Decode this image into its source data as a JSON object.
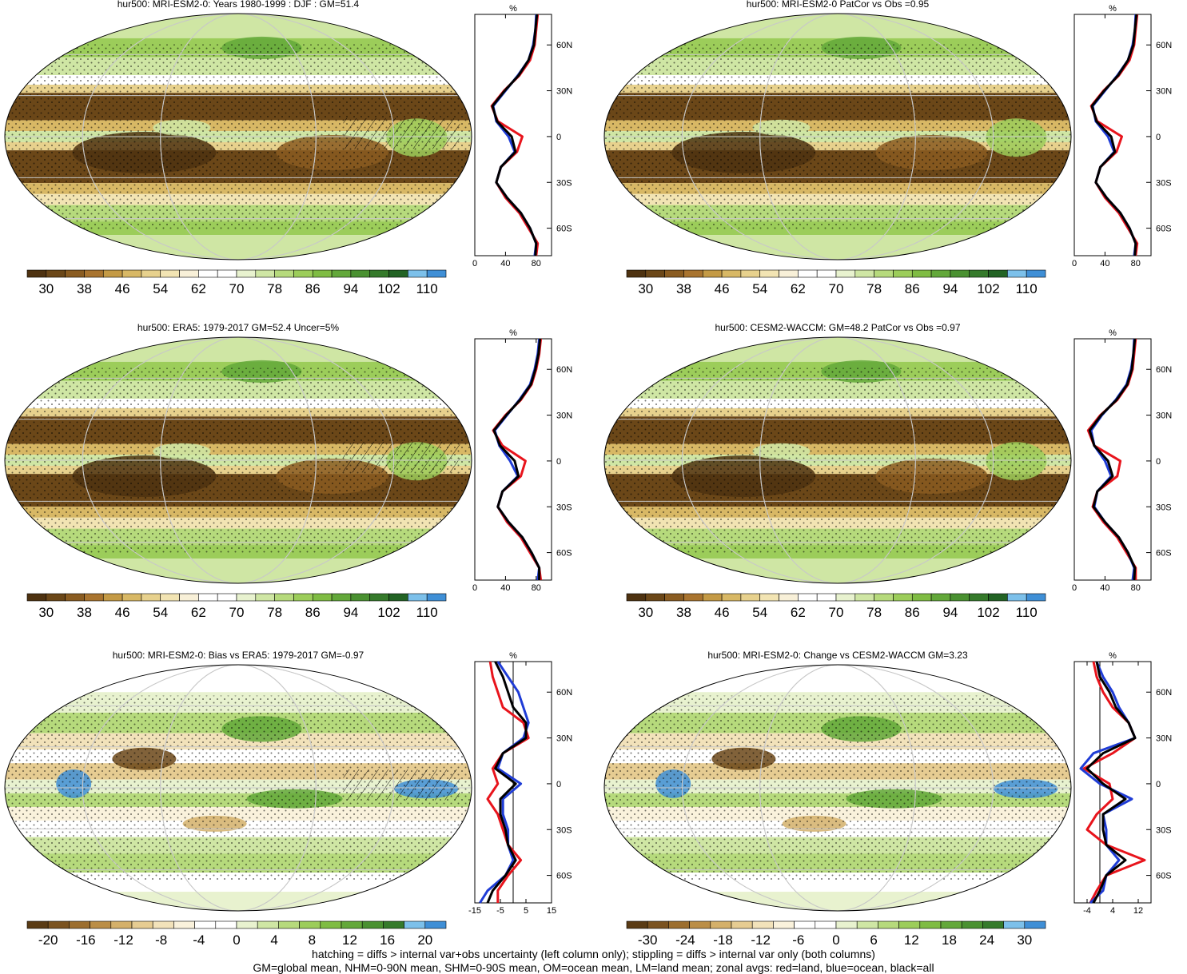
{
  "colors": {
    "line_land": "#e8141c",
    "line_ocean": "#1f3cd6",
    "line_all": "#000000",
    "ocean_fill": "#f4f4f4",
    "grid": "#c8c8c8",
    "abs_palette": [
      "#4e3210",
      "#6b4718",
      "#8a5c21",
      "#a9742f",
      "#c49a45",
      "#d8b865",
      "#e7d18d",
      "#f2e4b3",
      "#f8f0d8",
      "#ffffff",
      "#ffffff",
      "#e8f2cf",
      "#cfe6a4",
      "#b6da7c",
      "#9ccd5a",
      "#7fbc43",
      "#63a83a",
      "#4a9131",
      "#357a2b",
      "#226324",
      "#7cc0ea",
      "#3f8fd6"
    ],
    "diff_palette": [
      "#5a3b14",
      "#7b5320",
      "#9c6e2e",
      "#bb8e46",
      "#d4b06a",
      "#e6cc92",
      "#f2e2ba",
      "#faf2dc",
      "#ffffff",
      "#ffffff",
      "#e8f2cf",
      "#cfe6a4",
      "#b6da7c",
      "#9ccd5a",
      "#7fbc43",
      "#63a83a",
      "#4a9131",
      "#357a2b",
      "#7cc0ea",
      "#3f8fd6"
    ]
  },
  "chart_data": [
    {
      "type": "heatmap",
      "title": "hur500: MRI-ESM2-0: Years 1980-1999 : DJF : GM=51.4",
      "colorbar_labels": [
        "30",
        "38",
        "46",
        "54",
        "62",
        "70",
        "78",
        "86",
        "94",
        "102",
        "110"
      ],
      "zonal_profile": {
        "unit": "%",
        "x_ticks": [
          "0",
          "40",
          "80"
        ],
        "xlim": [
          0,
          100
        ],
        "y_ticks": [
          "60N",
          "30N",
          "0",
          "30S",
          "60S"
        ],
        "lat": [
          80,
          70,
          60,
          50,
          40,
          30,
          20,
          10,
          0,
          -10,
          -20,
          -30,
          -40,
          -50,
          -60,
          -70,
          -78
        ],
        "land": [
          82,
          80,
          78,
          72,
          58,
          38,
          22,
          30,
          62,
          55,
          34,
          28,
          40,
          58,
          70,
          82,
          80
        ],
        "ocean": [
          80,
          79,
          76,
          70,
          56,
          40,
          24,
          28,
          44,
          52,
          34,
          28,
          42,
          60,
          72,
          80,
          78
        ],
        "all": [
          81,
          79,
          77,
          70,
          57,
          39,
          23,
          29,
          48,
          53,
          34,
          28,
          42,
          60,
          72,
          80,
          79
        ]
      }
    },
    {
      "type": "heatmap",
      "title": "hur500: MRI-ESM2-0 PatCor vs Obs =0.95",
      "colorbar_labels": [
        "30",
        "38",
        "46",
        "54",
        "62",
        "70",
        "78",
        "86",
        "94",
        "102",
        "110"
      ],
      "zonal_profile": {
        "unit": "%",
        "x_ticks": [
          "0",
          "40",
          "80"
        ],
        "xlim": [
          0,
          100
        ],
        "y_ticks": [
          "60N",
          "30N",
          "0",
          "30S",
          "60S"
        ],
        "lat": [
          80,
          70,
          60,
          50,
          40,
          30,
          20,
          10,
          0,
          -10,
          -20,
          -30,
          -40,
          -50,
          -60,
          -70,
          -78
        ],
        "land": [
          82,
          80,
          78,
          72,
          58,
          38,
          22,
          30,
          62,
          55,
          34,
          28,
          40,
          58,
          70,
          82,
          80
        ],
        "ocean": [
          80,
          79,
          76,
          70,
          56,
          40,
          24,
          28,
          44,
          52,
          34,
          28,
          42,
          60,
          72,
          80,
          78
        ],
        "all": [
          81,
          79,
          77,
          70,
          57,
          39,
          23,
          29,
          48,
          53,
          34,
          28,
          42,
          60,
          72,
          80,
          79
        ]
      }
    },
    {
      "type": "heatmap",
      "title": "hur500: ERA5: 1979-2017 GM=52.4 Uncer=5%",
      "colorbar_labels": [
        "30",
        "38",
        "46",
        "54",
        "62",
        "70",
        "78",
        "86",
        "94",
        "102",
        "110"
      ],
      "zonal_profile": {
        "unit": "%",
        "x_ticks": [
          "0",
          "40",
          "80"
        ],
        "xlim": [
          0,
          100
        ],
        "y_ticks": [
          "60N",
          "30N",
          "0",
          "30S",
          "60S"
        ],
        "lat": [
          80,
          70,
          60,
          50,
          40,
          30,
          20,
          10,
          0,
          -10,
          -20,
          -30,
          -40,
          -50,
          -60,
          -70,
          -78
        ],
        "land": [
          86,
          84,
          80,
          74,
          60,
          40,
          24,
          36,
          66,
          60,
          36,
          30,
          42,
          60,
          72,
          84,
          86
        ],
        "ocean": [
          84,
          82,
          78,
          72,
          58,
          42,
          26,
          32,
          46,
          56,
          36,
          30,
          44,
          62,
          74,
          84,
          82
        ],
        "all": [
          85,
          83,
          79,
          73,
          59,
          41,
          25,
          33,
          52,
          57,
          36,
          30,
          44,
          62,
          74,
          84,
          84
        ]
      }
    },
    {
      "type": "heatmap",
      "title": "hur500: CESM2-WACCM: GM=48.2 PatCor vs Obs =0.97",
      "colorbar_labels": [
        "30",
        "38",
        "46",
        "54",
        "62",
        "70",
        "78",
        "86",
        "94",
        "102",
        "110"
      ],
      "zonal_profile": {
        "unit": "%",
        "x_ticks": [
          "0",
          "40",
          "80"
        ],
        "xlim": [
          0,
          100
        ],
        "y_ticks": [
          "60N",
          "30N",
          "0",
          "30S",
          "60S"
        ],
        "lat": [
          80,
          70,
          60,
          50,
          40,
          30,
          20,
          10,
          0,
          -10,
          -20,
          -30,
          -40,
          -50,
          -60,
          -70,
          -78
        ],
        "land": [
          80,
          78,
          76,
          70,
          56,
          34,
          18,
          26,
          60,
          56,
          30,
          24,
          38,
          56,
          68,
          80,
          80
        ],
        "ocean": [
          78,
          77,
          74,
          68,
          54,
          36,
          22,
          26,
          40,
          48,
          30,
          26,
          40,
          58,
          70,
          78,
          76
        ],
        "all": [
          79,
          77,
          75,
          69,
          55,
          35,
          20,
          26,
          44,
          50,
          30,
          25,
          40,
          58,
          70,
          79,
          78
        ]
      }
    },
    {
      "type": "heatmap",
      "title": "hur500: MRI-ESM2-0: Bias vs ERA5: 1979-2017 GM=-0.97",
      "colorbar_labels": [
        "-20",
        "-16",
        "-12",
        "-8",
        "-4",
        "0",
        "4",
        "8",
        "12",
        "16",
        "20"
      ],
      "zonal_profile": {
        "unit": "%",
        "x_ticks": [
          "-15",
          "-5",
          "5",
          "15"
        ],
        "xlim": [
          -15,
          15
        ],
        "y_ticks": [
          "60N",
          "30N",
          "0",
          "30S",
          "60S"
        ],
        "lat": [
          80,
          70,
          60,
          50,
          40,
          30,
          20,
          10,
          0,
          -10,
          -20,
          -30,
          -40,
          -50,
          -60,
          -70,
          -78
        ],
        "land": [
          -9,
          -8,
          -6,
          -4,
          4,
          6,
          -4,
          -8,
          -6,
          -10,
          -6,
          -4,
          -2,
          3,
          -2,
          -6,
          -6
        ],
        "ocean": [
          -6,
          -2,
          2,
          4,
          6,
          4,
          -4,
          -6,
          3,
          -4,
          -4,
          -2,
          -2,
          0,
          -3,
          -10,
          -13
        ],
        "all": [
          -7,
          -4,
          -2,
          0,
          5,
          5,
          -4,
          -7,
          1,
          -5,
          -5,
          -3,
          -2,
          1,
          -3,
          -8,
          -10
        ]
      }
    },
    {
      "type": "heatmap",
      "title": "hur500: MRI-ESM2-0: Change vs CESM2-WACCM GM=3.23",
      "colorbar_labels": [
        "-30",
        "-24",
        "-18",
        "-12",
        "-6",
        "0",
        "6",
        "12",
        "18",
        "24",
        "30"
      ],
      "zonal_profile": {
        "unit": "%",
        "x_ticks": [
          "-4",
          "4",
          "12"
        ],
        "xlim": [
          -8,
          16
        ],
        "y_ticks": [
          "60N",
          "30N",
          "0",
          "30S",
          "60S"
        ],
        "lat": [
          80,
          70,
          60,
          50,
          40,
          30,
          20,
          10,
          0,
          -10,
          -20,
          -30,
          -40,
          -50,
          -60,
          -70,
          -78
        ],
        "land": [
          -2,
          -1,
          1,
          4,
          9,
          11,
          4,
          -5,
          3,
          4,
          -1,
          -4,
          2,
          14,
          2,
          -1,
          -3
        ],
        "ocean": [
          -1,
          1,
          4,
          6,
          9,
          11,
          -2,
          -6,
          0,
          10,
          1,
          2,
          2,
          6,
          2,
          1,
          -3
        ],
        "all": [
          -1,
          0,
          3,
          5,
          9,
          11,
          1,
          -4,
          1,
          8,
          1,
          1,
          2,
          8,
          2,
          0,
          -2
        ]
      }
    }
  ],
  "footer": {
    "line1": "hatching = diffs > internal var+obs uncertainty (left column only); stippling = diffs > internal var only (both columns)",
    "line2": "GM=global mean, NHM=0-90N mean, SHM=0-90S mean, OM=ocean mean, LM=land mean; zonal avgs: red=land, blue=ocean, black=all"
  }
}
